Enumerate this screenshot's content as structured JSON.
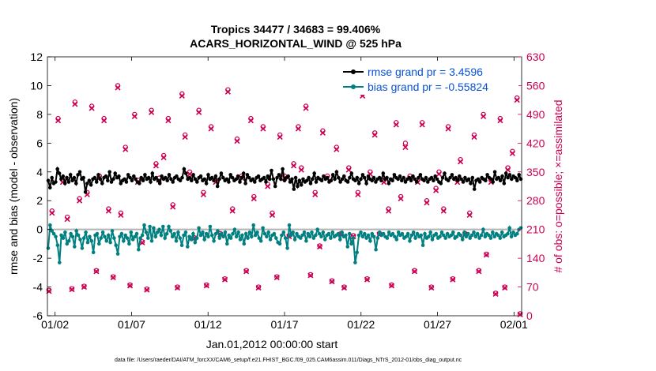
{
  "chart_data": {
    "type": "line",
    "title": "Tropics 34477 / 34683 = 99.406%",
    "subtitle": "ACARS_HORIZONTAL_WIND @ 525 hPa",
    "xlabel": "Jan.01,2012 00:00:00 start",
    "ylabel_left": "rmse and bias (model - observation)",
    "ylabel_right": "# of obs: o=possible; ×=assimilated",
    "footnote": "data file: /Users/raeder/DAI/ATM_forcXX/CAM6_setup/f.e21.FHIST_BGC.f09_025.CAM6assim.011/Diags_NTrS_2012-01/obs_diag_output.nc",
    "xlim": [
      0.5,
      31.5
    ],
    "ylim_left": [
      -6,
      12
    ],
    "ylim_right": [
      0,
      630
    ],
    "x_tick_positions": [
      1,
      6,
      11,
      16,
      21,
      26,
      31
    ],
    "x_tick_labels": [
      "01/02",
      "01/07",
      "01/12",
      "01/17",
      "01/22",
      "01/27",
      "02/01"
    ],
    "y_left_ticks": [
      -6,
      -4,
      -2,
      0,
      2,
      4,
      6,
      8,
      10,
      12
    ],
    "y_right_ticks": [
      0,
      70,
      140,
      210,
      280,
      350,
      420,
      490,
      560,
      630
    ],
    "colors": {
      "rmse": "#000000",
      "bias": "#008080",
      "obs": "#cc0052",
      "zero": "#b3b3b3",
      "legend_text": "#0a52d6"
    },
    "series": [
      {
        "name": "rmse grand pr = 3.4596",
        "axis": "left",
        "values": [
          3.4,
          2.9,
          3.6,
          3.2,
          3.3,
          4.2,
          3.9,
          3.5,
          3.7,
          3.2,
          3.6,
          3.3,
          3.8,
          3.4,
          3.6,
          3.2,
          3.8,
          4.0,
          3.5,
          3.6,
          2.6,
          3.2,
          3.4,
          3.1,
          3.5,
          3.6,
          3.3,
          3.8,
          3.5,
          3.2,
          3.6,
          3.7,
          3.4,
          4.0,
          3.3,
          3.5,
          3.9,
          3.6,
          3.7,
          3.2,
          3.4,
          3.5,
          3.3,
          3.8,
          3.6,
          3.4,
          3.7,
          3.5,
          3.3,
          3.2,
          3.6,
          3.4,
          3.8,
          3.5,
          3.6,
          3.3,
          3.9,
          3.5,
          3.6,
          3.4,
          3.2,
          3.7,
          3.5,
          3.6,
          3.4,
          3.8,
          3.5,
          3.3,
          3.6,
          3.7,
          3.5,
          3.4,
          3.6,
          4.2,
          3.9,
          3.5,
          3.6,
          3.4,
          3.8,
          3.5,
          3.3,
          3.6,
          3.7,
          3.4,
          3.5,
          3.2,
          3.8,
          3.5,
          3.6,
          3.4,
          3.7,
          3.0,
          3.5,
          3.9,
          3.6,
          3.4,
          3.5,
          3.3,
          3.8,
          3.6,
          3.4,
          3.5,
          3.7,
          3.3,
          3.6,
          3.9,
          3.2,
          3.8,
          3.6,
          3.4,
          3.5,
          3.3,
          3.6,
          3.7,
          3.4,
          3.5,
          3.6,
          3.3,
          3.7,
          3.5,
          4.1,
          3.5,
          3.0,
          3.6,
          3.8,
          3.5,
          4.2,
          3.4,
          3.6,
          3.7,
          3.3,
          3.5,
          2.8,
          3.6,
          3.0,
          3.4,
          3.1,
          3.5,
          3.3,
          3.4,
          3.6,
          3.2,
          3.5,
          3.9,
          3.3,
          3.6,
          3.5,
          3.4,
          3.7,
          3.5,
          3.6,
          3.3,
          3.4,
          3.8,
          3.5,
          4.0,
          3.6,
          3.3,
          3.5,
          3.7,
          3.4,
          3.3,
          3.6,
          3.9,
          3.5,
          3.4,
          3.6,
          3.2,
          3.5,
          3.8,
          3.6,
          3.2,
          3.7,
          3.5,
          3.4,
          3.6,
          3.3,
          3.5,
          3.6,
          3.4,
          3.9,
          3.5,
          3.6,
          3.2,
          3.5,
          3.4,
          3.8,
          3.6,
          3.5,
          3.7,
          3.4,
          3.6,
          3.3,
          3.5,
          3.6,
          3.4,
          3.7,
          3.5,
          3.3,
          3.6,
          3.8,
          3.5,
          3.4,
          3.6,
          3.3,
          3.5,
          3.6,
          3.4,
          3.7,
          3.5,
          3.3,
          3.2,
          3.6,
          3.9,
          3.5,
          3.4,
          3.6,
          3.8,
          3.5,
          3.6,
          3.4,
          3.7,
          3.5,
          3.3,
          3.6,
          3.4,
          3.5,
          3.2,
          3.6,
          2.8,
          3.4,
          3.5,
          3.3,
          3.6,
          3.5,
          3.4,
          3.8,
          3.6,
          3.5,
          3.3,
          4.0,
          3.5,
          3.6,
          3.4,
          3.7,
          3.2,
          3.9,
          3.6,
          3.8,
          3.5,
          3.7,
          3.6,
          3.4,
          3.8,
          3.5
        ]
      },
      {
        "name": "bias grand pr = -0.55824",
        "axis": "left",
        "values": [
          -1.3,
          0.3,
          -0.1,
          -0.3,
          -0.5,
          -1.1,
          -2.3,
          -0.4,
          -0.6,
          -0.2,
          -1.0,
          -0.8,
          -0.3,
          -0.5,
          -1.2,
          -0.1,
          -0.4,
          -0.7,
          -1.3,
          -0.6,
          -0.2,
          -0.9,
          -0.5,
          -0.8,
          -1.6,
          -0.4,
          -0.3,
          -1.0,
          -0.6,
          -0.2,
          -0.5,
          -0.8,
          -0.4,
          -0.9,
          -0.1,
          -0.6,
          -1.1,
          -1.7,
          -0.5,
          -0.3,
          -0.8,
          -0.4,
          -0.6,
          -1.0,
          -0.2,
          -0.7,
          -0.5,
          -0.3,
          -1.4,
          -0.6,
          -0.4,
          0.3,
          -0.2,
          -0.6,
          0.2,
          -0.8,
          0.1,
          -0.5,
          -0.2,
          0.0,
          -0.4,
          0.2,
          -0.6,
          -0.3,
          0.2,
          -0.1,
          -0.5,
          -0.3,
          -0.8,
          -0.2,
          -0.6,
          -1.1,
          -0.4,
          -0.2,
          -1.2,
          -0.5,
          -0.7,
          -0.3,
          -0.9,
          -0.6,
          0.1,
          -0.4,
          -0.2,
          -0.7,
          -0.3,
          -0.5,
          0.2,
          -0.4,
          -0.8,
          -0.3,
          -0.1,
          -0.6,
          -0.3,
          -0.5,
          -0.2,
          -1.0,
          -0.4,
          -0.6,
          -0.3,
          0.0,
          -0.5,
          -0.2,
          -0.7,
          -0.4,
          -1.0,
          -0.3,
          -0.6,
          -0.2,
          -0.5,
          0.3,
          -0.4,
          -0.2,
          -0.6,
          -0.8,
          0.1,
          -0.3,
          -0.5,
          -0.2,
          -0.7,
          -0.4,
          -0.3,
          -0.6,
          -0.9,
          -1.0,
          -0.4,
          -0.2,
          -0.6,
          -1.3,
          0.3,
          -0.4,
          -0.2,
          -0.7,
          -0.3,
          -0.5,
          -0.6,
          -0.4,
          -0.2,
          -0.8,
          -0.3,
          -0.5,
          -0.2,
          -0.6,
          -0.4,
          0.0,
          -0.3,
          -0.5,
          -0.2,
          -0.7,
          -0.4,
          -0.3,
          -0.6,
          -0.2,
          -0.5,
          -0.4,
          -0.3,
          -0.7,
          -0.2,
          -0.5,
          -0.4,
          -1.2,
          -0.3,
          -1.0,
          -0.6,
          -2.3,
          -1.6,
          -0.4,
          -0.2,
          -0.5,
          -0.3,
          -0.6,
          -0.4,
          -0.8,
          -0.3,
          -0.5,
          -1.4,
          -0.6,
          -0.2,
          -0.4,
          -0.3,
          -0.5,
          -0.6,
          -0.2,
          -0.4,
          -0.3,
          -0.5,
          -0.7,
          -0.2,
          -0.4,
          -0.3,
          -0.6,
          -0.5,
          -0.3,
          -0.8,
          -0.4,
          -0.2,
          -0.6,
          -0.3,
          -0.5,
          -0.4,
          -1.1,
          -0.3,
          -0.6,
          -0.5,
          -0.2,
          -0.7,
          -0.4,
          -0.3,
          -0.6,
          -0.5,
          -0.2,
          -0.4,
          -0.6,
          -0.3,
          -0.5,
          -0.4,
          -0.2,
          -0.6,
          -0.5,
          -0.3,
          -0.4,
          -0.7,
          -0.2,
          -0.5,
          -0.3,
          -0.6,
          -0.4,
          -0.2,
          -0.5,
          -0.3,
          -0.6,
          -0.4,
          0.0,
          -0.5,
          -0.3,
          -0.4,
          -0.6,
          -0.2,
          -0.5,
          -0.3,
          -0.4,
          -0.6,
          -0.2,
          -0.5,
          -0.4,
          -0.3,
          0.1,
          -0.5,
          -0.2,
          -0.4,
          -0.3,
          0.0,
          0.1
        ]
      }
    ],
    "obs_counts": {
      "axis": "right",
      "x": [
        0.6,
        0.8,
        1.2,
        1.5,
        1.8,
        2.1,
        2.3,
        2.6,
        2.9,
        3.1,
        3.4,
        3.7,
        3.9,
        4.2,
        4.5,
        4.8,
        5.1,
        5.3,
        5.6,
        5.9,
        6.2,
        6.4,
        6.7,
        7.0,
        7.3,
        7.6,
        7.8,
        8.1,
        8.4,
        8.7,
        9.0,
        9.3,
        9.5,
        9.8,
        10.1,
        10.4,
        10.7,
        10.9,
        11.2,
        11.5,
        11.8,
        12.1,
        12.3,
        12.6,
        12.9,
        13.2,
        13.5,
        13.8,
        14.0,
        14.3,
        14.6,
        14.9,
        15.2,
        15.5,
        15.7,
        16.0,
        16.3,
        16.6,
        16.9,
        17.1,
        17.4,
        17.7,
        18.0,
        18.3,
        18.5,
        18.8,
        19.1,
        19.4,
        19.7,
        19.9,
        20.2,
        20.5,
        20.8,
        21.1,
        21.4,
        21.6,
        21.9,
        22.2,
        22.5,
        22.8,
        23.0,
        23.3,
        23.6,
        23.9,
        24.2,
        24.5,
        24.7,
        25.0,
        25.3,
        25.6,
        25.9,
        26.1,
        26.4,
        26.7,
        27.0,
        27.3,
        27.5,
        27.8,
        28.1,
        28.4,
        28.7,
        29.0,
        29.2,
        29.5,
        29.8,
        30.1,
        30.4,
        30.6,
        30.9,
        31.2,
        31.4
      ],
      "possible": [
        62,
        255,
        480,
        330,
        240,
        66,
        520,
        285,
        72,
        300,
        510,
        110,
        340,
        480,
        260,
        95,
        560,
        250,
        410,
        75,
        490,
        330,
        180,
        65,
        500,
        370,
        335,
        390,
        480,
        270,
        70,
        540,
        440,
        350,
        190,
        500,
        300,
        75,
        460,
        330,
        200,
        90,
        550,
        260,
        430,
        340,
        110,
        480,
        290,
        70,
        460,
        320,
        250,
        95,
        440,
        340,
        195,
        370,
        460,
        360,
        510,
        100,
        300,
        170,
        450,
        340,
        85,
        410,
        200,
        70,
        360,
        195,
        300,
        540,
        90,
        350,
        445,
        200,
        330,
        260,
        75,
        470,
        290,
        420,
        340,
        110,
        330,
        470,
        280,
        70,
        310,
        350,
        260,
        460,
        90,
        330,
        380,
        200,
        250,
        440,
        110,
        490,
        150,
        330,
        55,
        480,
        70,
        360,
        400,
        530,
        5
      ],
      "assimilated": [
        60,
        250,
        475,
        325,
        235,
        64,
        515,
        280,
        70,
        295,
        505,
        108,
        335,
        475,
        255,
        93,
        555,
        245,
        405,
        73,
        485,
        325,
        178,
        63,
        495,
        365,
        330,
        385,
        475,
        265,
        68,
        535,
        435,
        345,
        188,
        495,
        295,
        73,
        455,
        325,
        198,
        88,
        545,
        255,
        425,
        335,
        108,
        475,
        285,
        68,
        455,
        315,
        245,
        93,
        435,
        335,
        193,
        365,
        455,
        355,
        505,
        98,
        295,
        168,
        445,
        335,
        83,
        405,
        198,
        68,
        355,
        193,
        295,
        535,
        88,
        345,
        440,
        198,
        325,
        255,
        73,
        465,
        285,
        410,
        335,
        108,
        325,
        465,
        275,
        68,
        305,
        345,
        255,
        455,
        88,
        325,
        375,
        198,
        245,
        435,
        108,
        485,
        148,
        325,
        53,
        475,
        68,
        355,
        395,
        525,
        3
      ]
    }
  }
}
